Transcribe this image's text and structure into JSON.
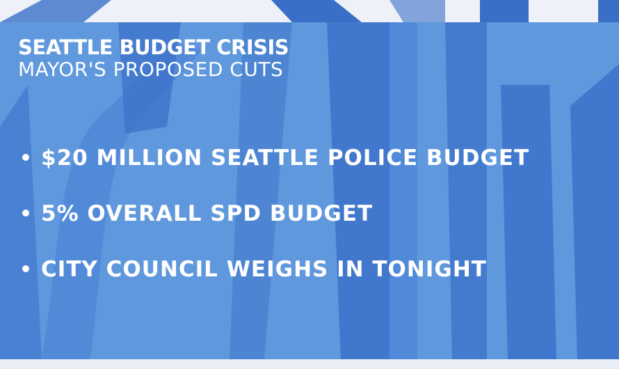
{
  "graphic": {
    "title": "SEATTLE BUDGET CRISIS",
    "subtitle": "MAYOR'S PROPOSED CUTS",
    "bullets": [
      "$20 MILLION SEATTLE POLICE BUDGET",
      "5% OVERALL SPD BUDGET",
      "CITY COUNCIL WEIGHS IN TONIGHT"
    ],
    "colors": {
      "panel": "#5f98dd",
      "shape": "#3a6fc8",
      "text": "#ffffff"
    }
  }
}
